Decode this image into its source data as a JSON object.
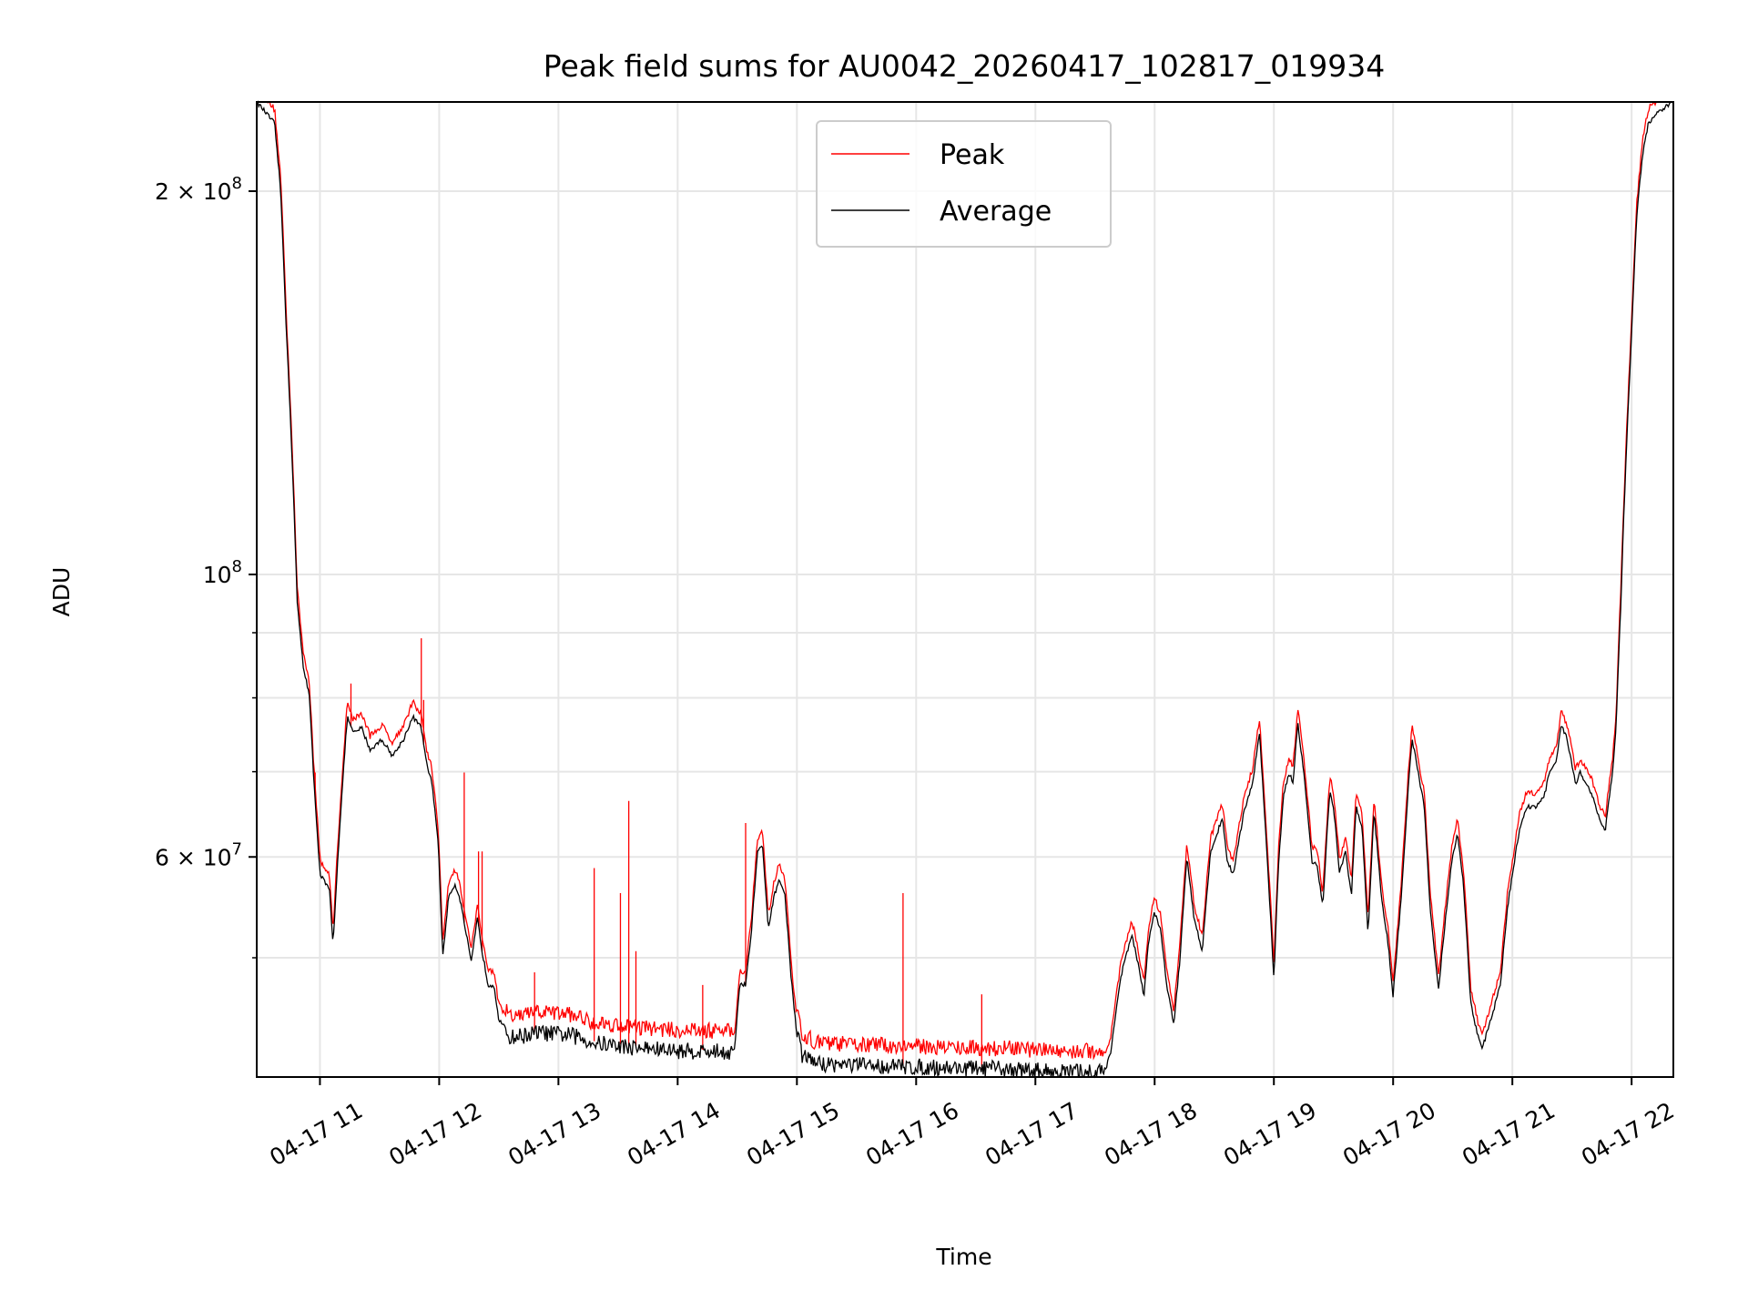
{
  "chart_data": {
    "type": "line",
    "title": "Peak field sums for AU0042_20260417_102817_019934",
    "xlabel": "Time",
    "ylabel": "ADU",
    "yscale": "log",
    "xlim_hours": [
      10.47,
      22.35
    ],
    "ylim": [
      40300000,
      235000000
    ],
    "grid": true,
    "legend_position": "upper-center",
    "x_ticks": [
      {
        "hour": 11,
        "label": "04-17 11"
      },
      {
        "hour": 12,
        "label": "04-17 12"
      },
      {
        "hour": 13,
        "label": "04-17 13"
      },
      {
        "hour": 14,
        "label": "04-17 14"
      },
      {
        "hour": 15,
        "label": "04-17 15"
      },
      {
        "hour": 16,
        "label": "04-17 16"
      },
      {
        "hour": 17,
        "label": "04-17 17"
      },
      {
        "hour": 18,
        "label": "04-17 18"
      },
      {
        "hour": 19,
        "label": "04-17 19"
      },
      {
        "hour": 20,
        "label": "04-17 20"
      },
      {
        "hour": 21,
        "label": "04-17 21"
      },
      {
        "hour": 22,
        "label": "04-17 22"
      }
    ],
    "y_ticks": [
      {
        "value": 200000000,
        "label": "2 × 10",
        "exp": "8"
      },
      {
        "value": 100000000,
        "label": "10",
        "exp": "8"
      },
      {
        "value": 60000000,
        "label": "6 × 10",
        "exp": "7"
      }
    ],
    "y_minor_ticks": [
      50000000,
      70000000,
      80000000,
      90000000
    ],
    "series": [
      {
        "name": "Peak",
        "color": "#ff0000",
        "peak_ratio": 1.02,
        "spikes": [
          [
            10.96,
            69.9
          ],
          [
            11.26,
            82.1
          ],
          [
            11.85,
            89.1
          ],
          [
            11.87,
            79.7
          ],
          [
            12.21,
            69.9
          ],
          [
            12.33,
            60.6
          ],
          [
            12.36,
            60.6
          ],
          [
            12.8,
            48.7
          ],
          [
            13.3,
            58.8
          ],
          [
            13.52,
            56.2
          ],
          [
            13.59,
            66.4
          ],
          [
            13.65,
            50.6
          ],
          [
            14.21,
            47.6
          ],
          [
            14.57,
            63.8
          ],
          [
            15.89,
            56.2
          ],
          [
            16.55,
            46.8
          ]
        ]
      },
      {
        "name": "Average",
        "color": "#000000"
      }
    ],
    "average_points_hour_1e6": [
      [
        10.47,
        235
      ],
      [
        10.62,
        226
      ],
      [
        10.67,
        200
      ],
      [
        10.72,
        154
      ],
      [
        10.77,
        121
      ],
      [
        10.81,
        94.7
      ],
      [
        10.86,
        84.7
      ],
      [
        10.91,
        80.5
      ],
      [
        10.95,
        68.5
      ],
      [
        11.0,
        58.2
      ],
      [
        11.05,
        57.1
      ],
      [
        11.08,
        56.5
      ],
      [
        11.11,
        51.1
      ],
      [
        11.19,
        68.5
      ],
      [
        11.23,
        77.3
      ],
      [
        11.28,
        75.0
      ],
      [
        11.35,
        75.8
      ],
      [
        11.42,
        72.8
      ],
      [
        11.52,
        74.2
      ],
      [
        11.61,
        72.0
      ],
      [
        11.7,
        74.2
      ],
      [
        11.78,
        77.3
      ],
      [
        11.85,
        75.8
      ],
      [
        11.89,
        71.3
      ],
      [
        11.94,
        68.5
      ],
      [
        11.99,
        61.9
      ],
      [
        12.03,
        50.0
      ],
      [
        12.08,
        55.9
      ],
      [
        12.13,
        57.1
      ],
      [
        12.17,
        55.9
      ],
      [
        12.22,
        52.6
      ],
      [
        12.27,
        49.5
      ],
      [
        12.32,
        53.7
      ],
      [
        12.36,
        50.6
      ],
      [
        12.41,
        47.6
      ],
      [
        12.46,
        47.6
      ],
      [
        12.5,
        44.7
      ],
      [
        12.6,
        43.4
      ],
      [
        12.83,
        43.8
      ],
      [
        13.11,
        43.6
      ],
      [
        13.3,
        43.0
      ],
      [
        13.58,
        42.7
      ],
      [
        13.96,
        42.4
      ],
      [
        14.43,
        42.3
      ],
      [
        14.48,
        42.5
      ],
      [
        14.52,
        47.6
      ],
      [
        14.57,
        47.6
      ],
      [
        14.62,
        52.6
      ],
      [
        14.67,
        60.6
      ],
      [
        14.71,
        61.3
      ],
      [
        14.76,
        52.6
      ],
      [
        14.81,
        55.9
      ],
      [
        14.85,
        57.7
      ],
      [
        14.9,
        55.9
      ],
      [
        14.95,
        48.5
      ],
      [
        14.99,
        44.3
      ],
      [
        15.04,
        42.1
      ],
      [
        15.18,
        41.4
      ],
      [
        15.84,
        41.2
      ],
      [
        16.31,
        41.1
      ],
      [
        16.78,
        41.0
      ],
      [
        17.25,
        40.8
      ],
      [
        17.58,
        40.8
      ],
      [
        17.63,
        42.1
      ],
      [
        17.72,
        48.5
      ],
      [
        17.81,
        52.1
      ],
      [
        17.86,
        49.5
      ],
      [
        17.91,
        46.6
      ],
      [
        17.95,
        51.6
      ],
      [
        18.0,
        54.3
      ],
      [
        18.05,
        52.6
      ],
      [
        18.1,
        47.6
      ],
      [
        18.16,
        44.3
      ],
      [
        18.21,
        49.5
      ],
      [
        18.27,
        60.0
      ],
      [
        18.33,
        53.7
      ],
      [
        18.4,
        50.6
      ],
      [
        18.47,
        60.6
      ],
      [
        18.57,
        64.4
      ],
      [
        18.61,
        59.4
      ],
      [
        18.66,
        58.2
      ],
      [
        18.75,
        65.1
      ],
      [
        18.82,
        68.5
      ],
      [
        18.88,
        75.0
      ],
      [
        18.94,
        60.6
      ],
      [
        19.0,
        48.0
      ],
      [
        19.04,
        59.4
      ],
      [
        19.08,
        67.1
      ],
      [
        19.13,
        69.9
      ],
      [
        19.16,
        68.5
      ],
      [
        19.2,
        76.5
      ],
      [
        19.25,
        69.9
      ],
      [
        19.32,
        59.4
      ],
      [
        19.36,
        59.4
      ],
      [
        19.41,
        54.8
      ],
      [
        19.47,
        67.8
      ],
      [
        19.51,
        64.4
      ],
      [
        19.55,
        58.2
      ],
      [
        19.6,
        60.6
      ],
      [
        19.65,
        55.9
      ],
      [
        19.69,
        65.7
      ],
      [
        19.74,
        63.1
      ],
      [
        19.79,
        52.1
      ],
      [
        19.84,
        65.1
      ],
      [
        19.9,
        55.9
      ],
      [
        19.96,
        51.1
      ],
      [
        20.0,
        46.6
      ],
      [
        20.07,
        55.9
      ],
      [
        20.13,
        68.5
      ],
      [
        20.16,
        74.2
      ],
      [
        20.21,
        69.9
      ],
      [
        20.26,
        65.7
      ],
      [
        20.31,
        54.8
      ],
      [
        20.38,
        47.1
      ],
      [
        20.45,
        54.8
      ],
      [
        20.49,
        59.4
      ],
      [
        20.54,
        62.5
      ],
      [
        20.59,
        57.1
      ],
      [
        20.65,
        46.1
      ],
      [
        20.71,
        43.4
      ],
      [
        20.75,
        42.5
      ],
      [
        20.82,
        44.7
      ],
      [
        20.9,
        47.6
      ],
      [
        20.96,
        54.8
      ],
      [
        21.06,
        63.1
      ],
      [
        21.12,
        65.7
      ],
      [
        21.2,
        65.7
      ],
      [
        21.27,
        67.1
      ],
      [
        21.31,
        69.9
      ],
      [
        21.37,
        71.3
      ],
      [
        21.41,
        76.1
      ],
      [
        21.46,
        74.2
      ],
      [
        21.53,
        68.5
      ],
      [
        21.57,
        69.9
      ],
      [
        21.62,
        68.5
      ],
      [
        21.67,
        67.1
      ],
      [
        21.74,
        63.8
      ],
      [
        21.78,
        63.1
      ],
      [
        21.84,
        69.9
      ],
      [
        21.87,
        75.8
      ],
      [
        21.91,
        95.0
      ],
      [
        21.95,
        121
      ],
      [
        22.0,
        154
      ],
      [
        22.04,
        189
      ],
      [
        22.09,
        213
      ],
      [
        22.14,
        226
      ],
      [
        22.23,
        231
      ],
      [
        22.35,
        235
      ]
    ],
    "noisy_intervals_hours": [
      [
        12.55,
        14.45
      ],
      [
        15.0,
        17.6
      ]
    ]
  }
}
